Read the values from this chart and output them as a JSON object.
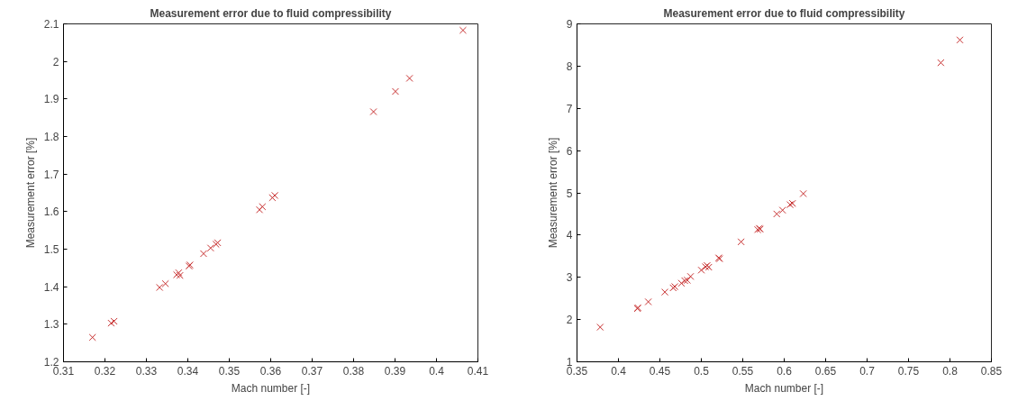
{
  "chart_data": [
    {
      "type": "scatter",
      "title": "Measurement error due to fluid compressibility",
      "xlabel": "Mach number [-]",
      "ylabel": "Measurement error [%]",
      "marker": "cross",
      "grid": false,
      "xlim": [
        0.31,
        0.41
      ],
      "xticks": [
        0.31,
        0.32,
        0.33,
        0.34,
        0.35,
        0.36,
        0.37,
        0.38,
        0.39,
        0.4,
        0.41
      ],
      "ylim": [
        1.2,
        2.1
      ],
      "yticks": [
        1.2,
        1.3,
        1.4,
        1.5,
        1.6,
        1.7,
        1.8,
        1.9,
        2,
        2.1
      ],
      "series": [
        {
          "color": "#c83232",
          "x": [
            0.317,
            0.3215,
            0.3222,
            0.3332,
            0.3346,
            0.3373,
            0.3378,
            0.3381,
            0.3403,
            0.3405,
            0.3438,
            0.3455,
            0.3468,
            0.3472,
            0.3573,
            0.358,
            0.3604,
            0.361,
            0.3848,
            0.3901,
            0.3935,
            0.4064
          ],
          "values": [
            1.265,
            1.303,
            1.308,
            1.398,
            1.408,
            1.432,
            1.437,
            1.43,
            1.455,
            1.458,
            1.488,
            1.503,
            1.513,
            1.517,
            1.605,
            1.613,
            1.637,
            1.643,
            1.866,
            1.92,
            1.955,
            2.083
          ]
        }
      ]
    },
    {
      "type": "scatter",
      "title": "Measurement error due to fluid compressibility",
      "xlabel": "Mach number [-]",
      "ylabel": "Measurement error [%]",
      "marker": "cross",
      "grid": false,
      "xlim": [
        0.35,
        0.85
      ],
      "xticks": [
        0.35,
        0.4,
        0.45,
        0.5,
        0.55,
        0.6,
        0.65,
        0.7,
        0.75,
        0.8,
        0.85
      ],
      "ylim": [
        1,
        9
      ],
      "yticks": [
        1,
        2,
        3,
        4,
        5,
        6,
        7,
        8,
        9
      ],
      "series": [
        {
          "color": "#c83232",
          "x": [
            0.378,
            0.423,
            0.4235,
            0.436,
            0.456,
            0.466,
            0.468,
            0.476,
            0.48,
            0.483,
            0.487,
            0.5,
            0.505,
            0.507,
            0.509,
            0.521,
            0.522,
            0.548,
            0.568,
            0.57,
            0.571,
            0.591,
            0.598,
            0.607,
            0.61,
            0.623,
            0.789,
            0.812
          ],
          "values": [
            1.82,
            2.26,
            2.28,
            2.42,
            2.65,
            2.75,
            2.78,
            2.86,
            2.92,
            2.93,
            3.02,
            3.17,
            3.25,
            3.28,
            3.24,
            3.46,
            3.44,
            3.84,
            4.13,
            4.16,
            4.14,
            4.5,
            4.59,
            4.72,
            4.75,
            4.98,
            8.08,
            8.62
          ]
        }
      ]
    }
  ]
}
